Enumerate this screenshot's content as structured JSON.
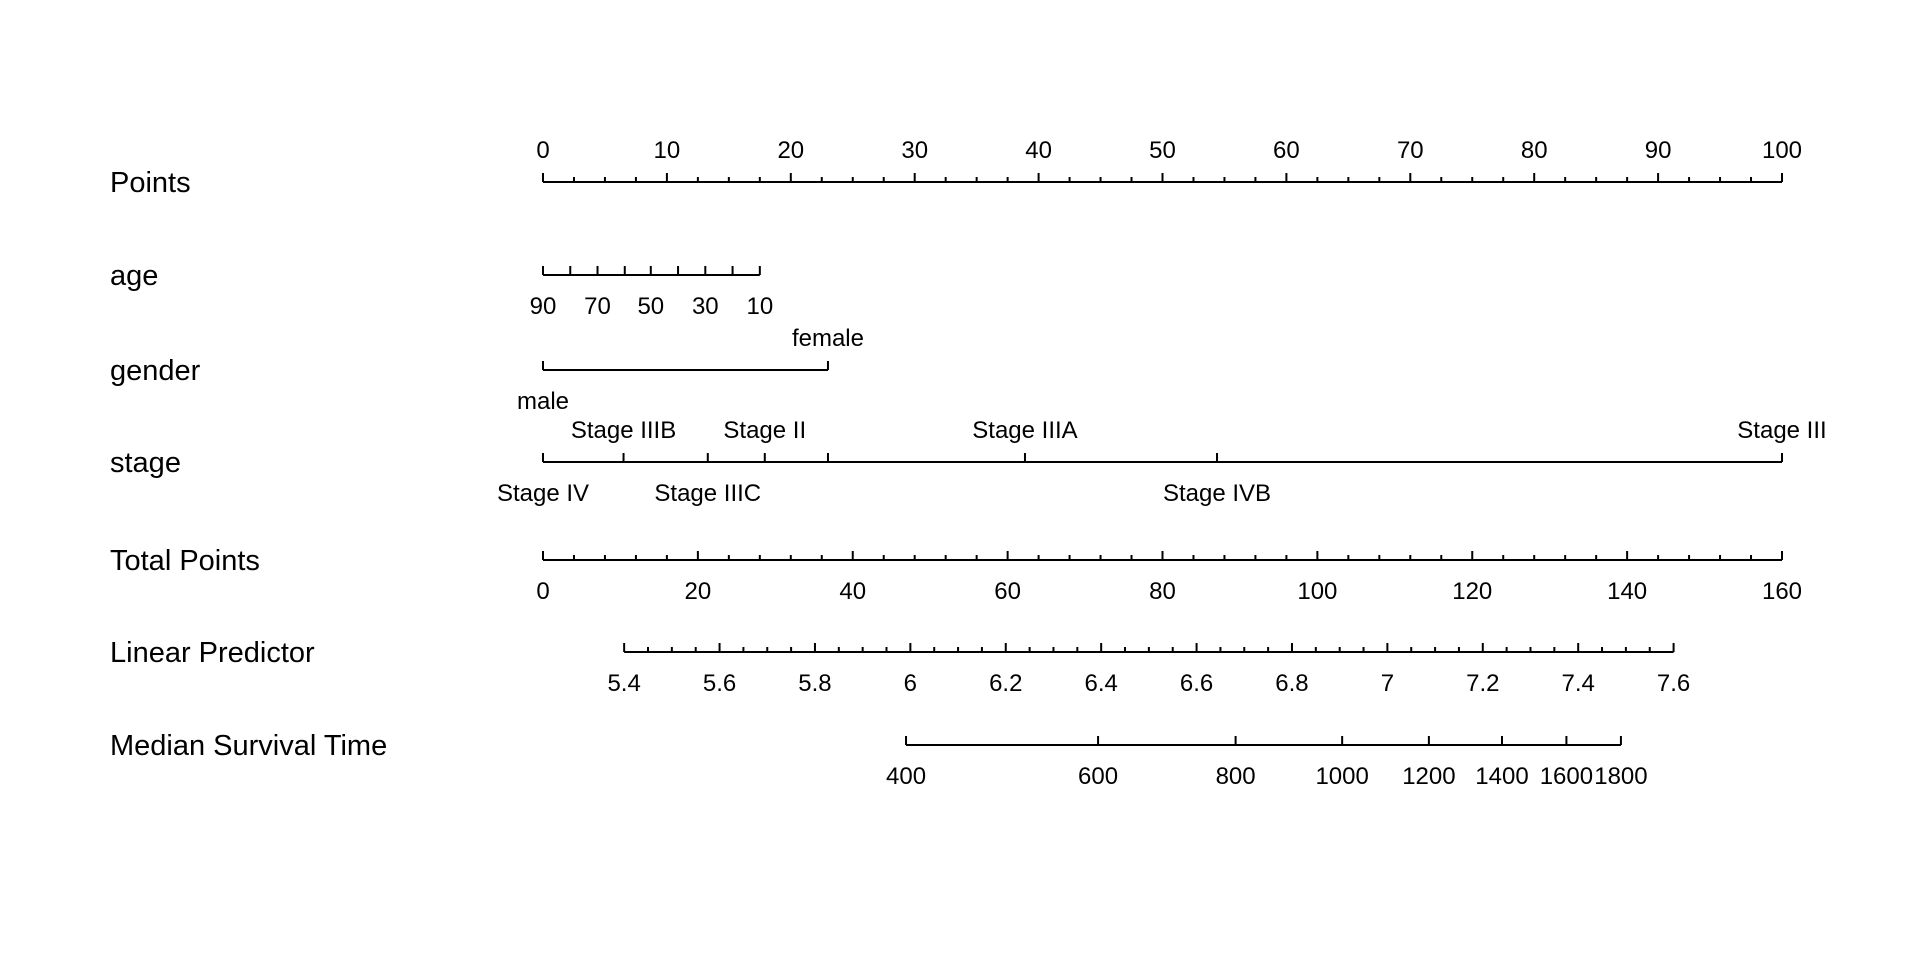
{
  "chart_data": {
    "type": "nomogram",
    "title": "",
    "points_range": [
      0,
      100
    ],
    "rows": [
      {
        "id": "points",
        "label": "Points",
        "ticks": [
          {
            "value": 0,
            "label": "0",
            "side": "above"
          },
          {
            "value": 10,
            "label": "10",
            "side": "above"
          },
          {
            "value": 20,
            "label": "20",
            "side": "above"
          },
          {
            "value": 30,
            "label": "30",
            "side": "above"
          },
          {
            "value": 40,
            "label": "40",
            "side": "above"
          },
          {
            "value": 50,
            "label": "50",
            "side": "above"
          },
          {
            "value": 60,
            "label": "60",
            "side": "above"
          },
          {
            "value": 70,
            "label": "70",
            "side": "above"
          },
          {
            "value": 80,
            "label": "80",
            "side": "above"
          },
          {
            "value": 90,
            "label": "90",
            "side": "above"
          },
          {
            "value": 100,
            "label": "100",
            "side": "above"
          }
        ],
        "minor_step": 2.5
      },
      {
        "id": "age",
        "label": "age",
        "ticks": [
          {
            "value": 0.0,
            "label": "90",
            "side": "below"
          },
          {
            "value": 2.2,
            "label": "",
            "side": "below"
          },
          {
            "value": 4.4,
            "label": "70",
            "side": "below"
          },
          {
            "value": 6.6,
            "label": "",
            "side": "below"
          },
          {
            "value": 8.7,
            "label": "50",
            "side": "below"
          },
          {
            "value": 10.9,
            "label": "",
            "side": "below"
          },
          {
            "value": 13.1,
            "label": "30",
            "side": "below"
          },
          {
            "value": 15.3,
            "label": "",
            "side": "below"
          },
          {
            "value": 17.5,
            "label": "10",
            "side": "below"
          }
        ]
      },
      {
        "id": "gender",
        "label": "gender",
        "ticks": [
          {
            "value": 0,
            "label": "male",
            "side": "below"
          },
          {
            "value": 23,
            "label": "female",
            "side": "above"
          }
        ]
      },
      {
        "id": "stage",
        "label": "stage",
        "ticks": [
          {
            "value": 0,
            "label": "Stage IV",
            "side": "below"
          },
          {
            "value": 6.5,
            "label": "Stage IIIB",
            "side": "above"
          },
          {
            "value": 13.3,
            "label": "Stage IIIC",
            "side": "below"
          },
          {
            "value": 17.9,
            "label": "Stage II",
            "side": "above"
          },
          {
            "value": 23,
            "label": "",
            "side": "above"
          },
          {
            "value": 38.9,
            "label": "Stage IIIA",
            "side": "above"
          },
          {
            "value": 54.4,
            "label": "Stage IVB",
            "side": "below"
          },
          {
            "value": 100,
            "label": "Stage III",
            "side": "above"
          }
        ]
      },
      {
        "id": "total-points",
        "label": "Total Points",
        "ticks": [
          {
            "value": 0,
            "label": "0",
            "side": "below"
          },
          {
            "value": 12.5,
            "label": "20",
            "side": "below"
          },
          {
            "value": 25,
            "label": "40",
            "side": "below"
          },
          {
            "value": 37.5,
            "label": "60",
            "side": "below"
          },
          {
            "value": 50,
            "label": "80",
            "side": "below"
          },
          {
            "value": 62.5,
            "label": "100",
            "side": "below"
          },
          {
            "value": 75,
            "label": "120",
            "side": "below"
          },
          {
            "value": 87.5,
            "label": "140",
            "side": "below"
          },
          {
            "value": 100,
            "label": "160",
            "side": "below"
          }
        ],
        "minor_step": 2.5
      },
      {
        "id": "linear-predictor",
        "label": "Linear Predictor",
        "ticks": [
          {
            "value": 6.55,
            "label": "5.4",
            "side": "below"
          },
          {
            "value": 14.25,
            "label": "5.6",
            "side": "below"
          },
          {
            "value": 21.95,
            "label": "5.8",
            "side": "below"
          },
          {
            "value": 29.65,
            "label": "6",
            "side": "below"
          },
          {
            "value": 37.35,
            "label": "6.2",
            "side": "below"
          },
          {
            "value": 45.05,
            "label": "6.4",
            "side": "below"
          },
          {
            "value": 52.75,
            "label": "6.6",
            "side": "below"
          },
          {
            "value": 60.45,
            "label": "6.8",
            "side": "below"
          },
          {
            "value": 68.15,
            "label": "7",
            "side": "below"
          },
          {
            "value": 75.85,
            "label": "7.2",
            "side": "below"
          },
          {
            "value": 83.55,
            "label": "7.4",
            "side": "below"
          },
          {
            "value": 91.25,
            "label": "7.6",
            "side": "below"
          }
        ],
        "minor_step": 1.925
      },
      {
        "id": "median-survival-time",
        "label": "Median Survival Time",
        "ticks": [
          {
            "value": 29.3,
            "label": "400",
            "side": "below"
          },
          {
            "value": 44.8,
            "label": "600",
            "side": "below"
          },
          {
            "value": 55.9,
            "label": "800",
            "side": "below"
          },
          {
            "value": 64.5,
            "label": "1000",
            "side": "below"
          },
          {
            "value": 71.5,
            "label": "1200",
            "side": "below"
          },
          {
            "value": 77.4,
            "label": "1400",
            "side": "below"
          },
          {
            "value": 82.6,
            "label": "1600",
            "side": "below"
          },
          {
            "value": 87.0,
            "label": "1800",
            "side": "below"
          }
        ]
      }
    ]
  }
}
